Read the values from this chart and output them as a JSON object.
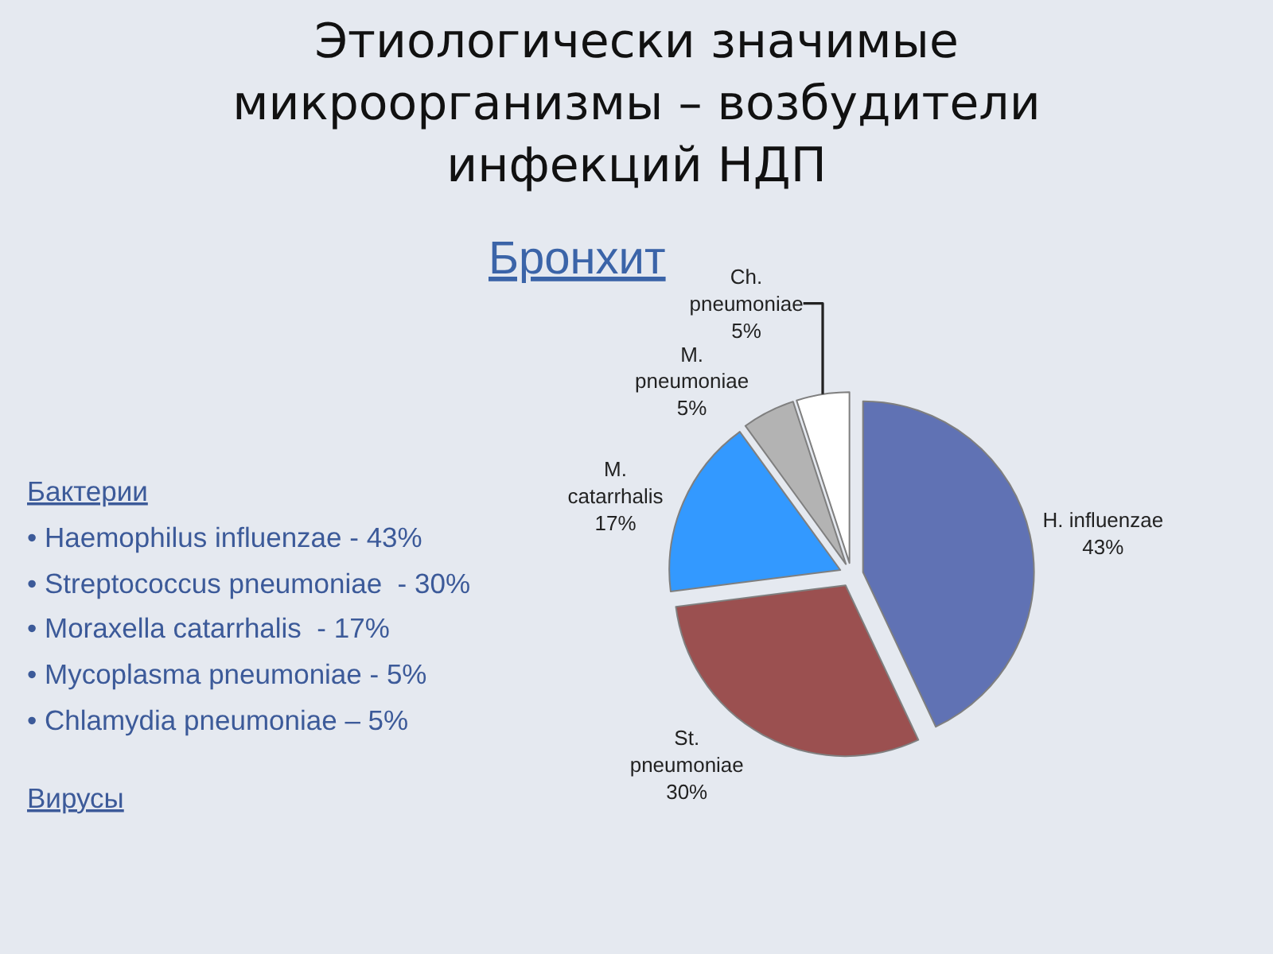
{
  "chart_data": {
    "type": "pie",
    "title": "Этиологически значимые микроорганизмы – возбудители инфекций НДП",
    "subtitle": "Бронхит",
    "categories": [
      "H. influenzae",
      "St. pneumoniae",
      "M. catarrhalis",
      "M. pneumoniae",
      "Ch. pneumoniae"
    ],
    "values": [
      43,
      30,
      17,
      5,
      5
    ],
    "value_labels": [
      "43%",
      "30%",
      "17%",
      "5%",
      "5%"
    ],
    "colors": [
      "#6072b4",
      "#9b5050",
      "#3399ff",
      "#b3b3b3",
      "#ffffff"
    ],
    "annotations": [
      "Бактерии",
      "• Haemophilus influenzae - 43%",
      "• Streptococcus pneumoniae  - 30%",
      "• Moraxella catarrhalis  - 17%",
      "• Mycoplasma pneumoniae - 5%",
      "• Chlamydia pneumoniae – 5%",
      "Вирусы"
    ]
  }
}
